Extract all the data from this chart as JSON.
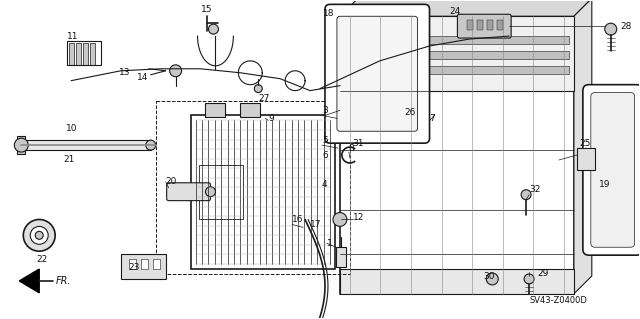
{
  "background_color": "#ffffff",
  "diagram_code": "SV43-Z0400D",
  "fig_width": 6.4,
  "fig_height": 3.19,
  "dpi": 100,
  "line_color": "#1a1a1a",
  "text_color": "#111111",
  "label_fontsize": 6.5,
  "gray_fill": "#c8c8c8",
  "light_gray": "#e0e0e0"
}
